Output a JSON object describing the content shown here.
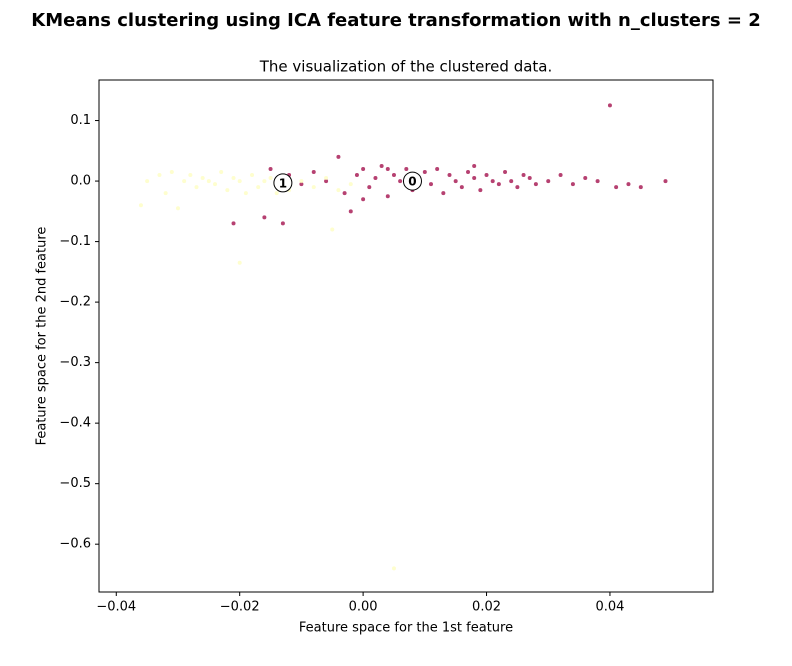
{
  "chart_data": {
    "type": "scatter",
    "title": "KMeans clustering using ICA feature transformation with n_clusters = 2",
    "subtitle": "The visualization of the clustered data.",
    "x_label": "Feature space for the 1st feature",
    "y_label": "Feature space for the 2nd feature",
    "xlim": [
      -0.0428,
      0.0567
    ],
    "ylim": [
      -0.679,
      0.167
    ],
    "xticks": [
      {
        "value": -0.04,
        "label": "−0.04"
      },
      {
        "value": -0.02,
        "label": "−0.02"
      },
      {
        "value": 0,
        "label": "0.00"
      },
      0.02,
      0.04
    ],
    "yticks": [
      0.1,
      {
        "value": 0,
        "label": "0.0"
      },
      {
        "value": -0.1,
        "label": "−0.1"
      },
      {
        "value": -0.2,
        "label": "−0.2"
      },
      {
        "value": -0.3,
        "label": "−0.3"
      },
      {
        "value": -0.4,
        "label": "−0.4"
      },
      {
        "value": -0.5,
        "label": "−0.5"
      },
      {
        "value": -0.6,
        "label": "−0.6"
      }
    ],
    "series": [
      {
        "color": "#9e0142",
        "x": [
          -0.015,
          -0.012,
          -0.01,
          -0.008,
          -0.006,
          -0.004,
          -0.003,
          -0.001,
          0.0,
          0.001,
          0.002,
          0.003,
          0.004,
          0.005,
          0.006,
          0.007,
          0.008,
          0.009,
          0.01,
          0.011,
          0.012,
          0.013,
          0.014,
          0.015,
          0.016,
          0.017,
          0.018,
          0.019,
          0.02,
          0.021,
          0.022,
          0.023,
          0.024,
          0.025,
          0.026,
          0.027,
          0.028,
          0.03,
          0.032,
          0.034,
          0.036,
          0.038,
          0.04,
          0.041,
          0.043,
          0.045,
          0.049,
          -0.021,
          -0.016,
          -0.013,
          0.008,
          0.004,
          0.0,
          0.018,
          -0.002
        ],
        "values": [
          0.02,
          0.01,
          -0.005,
          0.015,
          0.0,
          0.04,
          -0.02,
          0.01,
          0.02,
          -0.01,
          0.005,
          0.025,
          -0.025,
          0.01,
          0.0,
          0.02,
          -0.015,
          0.005,
          0.015,
          -0.005,
          0.02,
          -0.02,
          0.01,
          0.0,
          -0.01,
          0.015,
          0.005,
          -0.015,
          0.01,
          0.0,
          -0.005,
          0.015,
          0.0,
          -0.01,
          0.01,
          0.005,
          -0.005,
          0.0,
          0.01,
          -0.005,
          0.005,
          0.0,
          0.125,
          -0.01,
          -0.005,
          -0.01,
          0.0,
          -0.07,
          -0.06,
          -0.07,
          0.0,
          0.02,
          -0.03,
          0.025,
          -0.05
        ]
      },
      {
        "color": "#fefebd",
        "x": [
          -0.036,
          -0.035,
          -0.033,
          -0.032,
          -0.031,
          -0.03,
          -0.029,
          -0.028,
          -0.027,
          -0.026,
          -0.025,
          -0.024,
          -0.023,
          -0.022,
          -0.021,
          -0.02,
          -0.019,
          -0.018,
          -0.017,
          -0.016,
          -0.015,
          -0.014,
          -0.012,
          -0.01,
          -0.008,
          -0.006,
          -0.005,
          -0.004,
          -0.02,
          0.005,
          -0.002
        ],
        "values": [
          -0.04,
          0.0,
          0.01,
          -0.02,
          0.015,
          -0.045,
          0.0,
          0.01,
          -0.01,
          0.005,
          0.0,
          -0.005,
          0.015,
          -0.015,
          0.005,
          0.0,
          -0.02,
          0.01,
          -0.01,
          0.0,
          0.005,
          -0.02,
          -0.015,
          0.0,
          -0.01,
          0.005,
          -0.08,
          -0.015,
          -0.135,
          -0.64,
          -0.005
        ]
      }
    ],
    "centers": [
      {
        "label": "0",
        "x": 0.008,
        "y": 0.0
      },
      {
        "label": "1",
        "x": -0.013,
        "y": -0.003
      }
    ]
  }
}
